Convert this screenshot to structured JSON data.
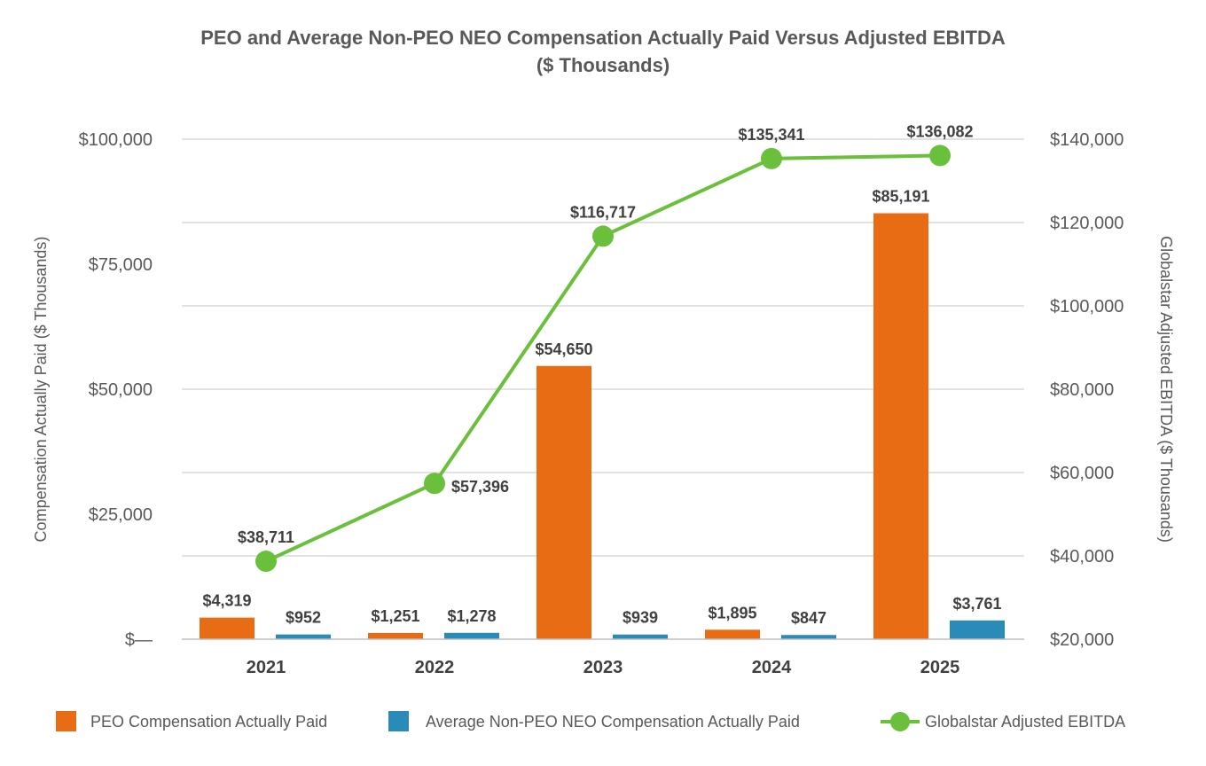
{
  "chart_data": {
    "type": "bar",
    "title": "PEO and Average Non-PEO NEO Compensation Actually Paid Versus Adjusted EBITDA",
    "subtitle": "($ Thousands)",
    "categories": [
      "2021",
      "2022",
      "2023",
      "2024",
      "2025"
    ],
    "y_left": {
      "label": "Compensation Actually Paid ($ Thousands)",
      "range": [
        0,
        100000
      ],
      "ticks": [
        0,
        25000,
        50000,
        75000,
        100000
      ],
      "tick_labels": [
        "$—",
        "$25,000",
        "$50,000",
        "$75,000",
        "$100,000"
      ]
    },
    "y_right": {
      "label": "Globalstar Adjusted EBITDA ($ Thousands)",
      "range": [
        20000,
        140000
      ],
      "ticks": [
        20000,
        40000,
        60000,
        80000,
        100000,
        120000,
        140000
      ],
      "tick_labels": [
        "$20,000",
        "$40,000",
        "$60,000",
        "$80,000",
        "$100,000",
        "$120,000",
        "$140,000"
      ]
    },
    "series": [
      {
        "name": "PEO Compensation Actually Paid",
        "kind": "bar",
        "axis": "left",
        "color": "#E86C13",
        "values": [
          4319,
          1251,
          54650,
          1895,
          85191
        ],
        "labels": [
          "$4,319",
          "$1,251",
          "$54,650",
          "$1,895",
          "$85,191"
        ]
      },
      {
        "name": "Average Non-PEO NEO Compensation Actually Paid",
        "kind": "bar",
        "axis": "left",
        "color": "#2A8BB8",
        "values": [
          952,
          1278,
          939,
          847,
          3761
        ],
        "labels": [
          "$952",
          "$1,278",
          "$939",
          "$847",
          "$3,761"
        ]
      },
      {
        "name": "Globalstar Adjusted EBITDA",
        "kind": "line",
        "axis": "right",
        "color": "#6ABF3B",
        "values": [
          38711,
          57396,
          116717,
          135341,
          136082
        ],
        "labels": [
          "$38,711",
          "$57,396",
          "$116,717",
          "$135,341",
          "$136,082"
        ]
      }
    ],
    "grid": true,
    "legend": "bottom"
  }
}
